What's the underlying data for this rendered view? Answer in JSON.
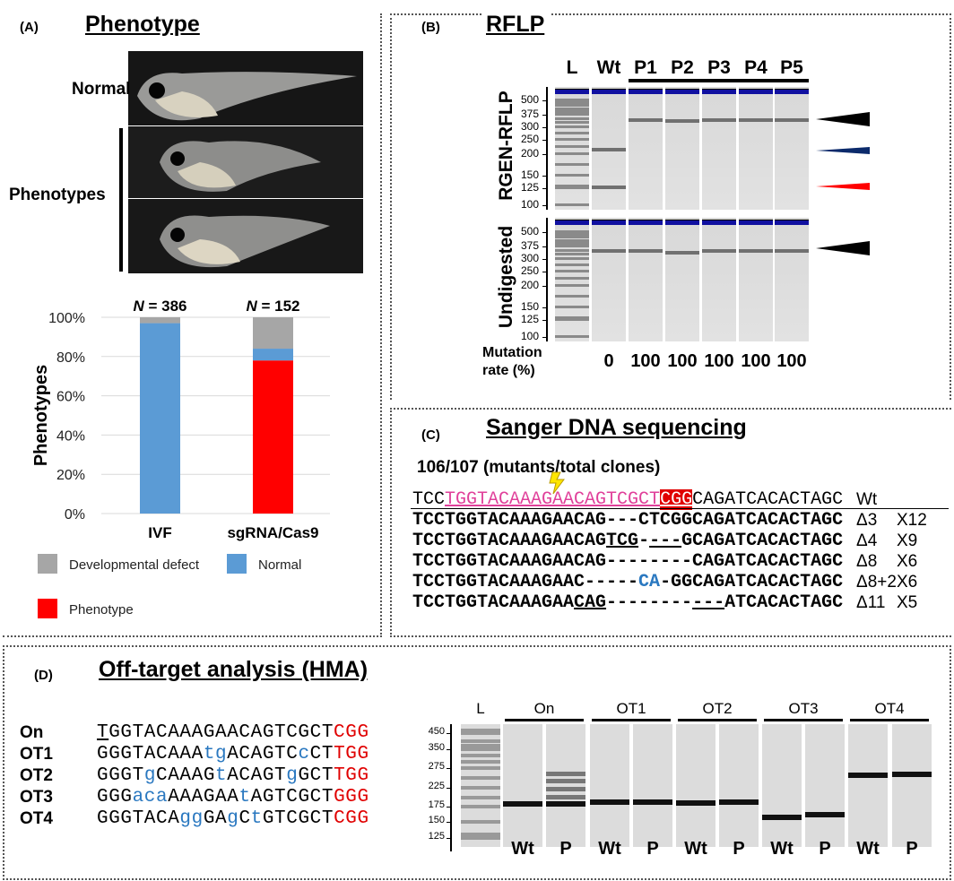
{
  "panel_a": {
    "label": "(A)",
    "title": "Phenotype",
    "photo_labels": {
      "normal": "Normal",
      "phenotypes": "Phenotypes"
    },
    "chart_data": {
      "type": "bar",
      "stacked": true,
      "categories": [
        "IVF",
        "sgRNA/Cas9"
      ],
      "annotations": [
        "N = 386",
        "N = 152"
      ],
      "n_prefix": "N",
      "n_values": [
        "= 386",
        "= 152"
      ],
      "ylabel": "Phenotypes",
      "ylim": [
        0,
        100
      ],
      "yticks": [
        "0%",
        "20%",
        "40%",
        "60%",
        "80%",
        "100%"
      ],
      "grid": true,
      "series": [
        {
          "name": "Phenotype",
          "color": "#ff0000",
          "values": [
            0,
            78
          ]
        },
        {
          "name": "Normal",
          "color": "#5b9bd5",
          "values": [
            97,
            6
          ]
        },
        {
          "name": "Developmental defect",
          "color": "#a6a6a6",
          "values": [
            3,
            16
          ]
        }
      ],
      "legend": [
        "Developmental defect",
        "Normal",
        "Phenotype"
      ],
      "legend_position": "bottom"
    }
  },
  "panel_b": {
    "label": "(B)",
    "title": "RFLP",
    "lanes": [
      "L",
      "Wt",
      "P1",
      "P2",
      "P3",
      "P4",
      "P5"
    ],
    "gel_labels": [
      "RGEN-RFLP",
      "Undigested"
    ],
    "size_ticks": [
      500,
      375,
      300,
      250,
      200,
      150,
      125,
      100
    ],
    "mutation_label_1": "Mutation",
    "mutation_label_2": "rate (%)",
    "mutation_rates": [
      "",
      "0",
      "100",
      "100",
      "100",
      "100",
      "100"
    ],
    "ladder_bands": [
      100,
      125,
      128,
      150,
      175,
      200,
      225,
      250,
      275,
      300,
      325,
      350,
      375,
      400,
      425,
      450,
      475,
      500
    ],
    "rflp_bands": [
      [],
      [
        215,
        127
      ],
      [
        345
      ],
      [
        340
      ],
      [
        342
      ],
      [
        343
      ],
      [
        342
      ]
    ],
    "undigested_bands": [
      [],
      [
        350
      ],
      [
        348
      ],
      [
        340
      ],
      [
        350
      ],
      [
        346
      ],
      [
        348
      ]
    ],
    "arrow_colors": [
      "#000000",
      "#0b2a6b",
      "#ff0000",
      "#000000"
    ]
  },
  "panel_c": {
    "label": "(C)",
    "title": "Sanger DNA sequencing",
    "summary": "106/107 (mutants/total clones)",
    "rows": [
      {
        "segments": [
          {
            "t": "TCC",
            "s": ""
          },
          {
            "t": "TGGTACAAAGAACAGTCGCT",
            "s": "pink-ul"
          },
          {
            "t": "CGG",
            "s": "red-box"
          },
          {
            "t": "CAGATCACACTAGC",
            "s": ""
          }
        ],
        "del": "Wt",
        "count": ""
      },
      {
        "segments": [
          {
            "t": "TCCTGGTACAAAGAACAG---CTCGGCAGATCACACTAGC",
            "s": ""
          }
        ],
        "del": "Δ3",
        "count": "X12"
      },
      {
        "segments": [
          {
            "t": "TCCTGGTACAAAGAACAG",
            "s": ""
          },
          {
            "t": "TCG",
            "s": "ul"
          },
          {
            "t": "-",
            "s": ""
          },
          {
            "t": "---",
            "s": "ul"
          },
          {
            "t": "GCAGATCACACTAGC",
            "s": ""
          }
        ],
        "del": "Δ4",
        "count": "X9"
      },
      {
        "segments": [
          {
            "t": "TCCTGGTACAAAGAACAG--------CAGATCACACTAGC",
            "s": ""
          }
        ],
        "del": "Δ8",
        "count": "X6"
      },
      {
        "segments": [
          {
            "t": "TCCTGGTACAAAGAAC-----",
            "s": ""
          },
          {
            "t": "CA",
            "s": "blue"
          },
          {
            "t": "-GGCAGATCACACTAGC",
            "s": ""
          }
        ],
        "del": "Δ8+2",
        "count": "X6"
      },
      {
        "segments": [
          {
            "t": "TCCTGGTACAAAGAA",
            "s": ""
          },
          {
            "t": "CAG",
            "s": "ul"
          },
          {
            "t": "--------",
            "s": ""
          },
          {
            "t": "---",
            "s": "ul"
          },
          {
            "t": "ATCACACTAGC",
            "s": ""
          }
        ],
        "del": "Δ11",
        "count": "X5"
      }
    ]
  },
  "panel_d": {
    "label": "(D)",
    "title": "Off-target analysis (HMA)",
    "targets": [
      {
        "name": "On",
        "segments": [
          {
            "t": "T",
            "s": "ul"
          },
          {
            "t": "GGTACAAAGAACAGTCGCT",
            "s": ""
          },
          {
            "t": "CGG",
            "s": "red"
          }
        ]
      },
      {
        "name": "OT1",
        "segments": [
          {
            "t": "GGGTACAAA",
            "s": ""
          },
          {
            "t": "tg",
            "s": "blue"
          },
          {
            "t": "ACAGTC",
            "s": ""
          },
          {
            "t": "c",
            "s": "blue"
          },
          {
            "t": "CT",
            "s": ""
          },
          {
            "t": "TGG",
            "s": "red"
          }
        ]
      },
      {
        "name": "OT2",
        "segments": [
          {
            "t": "GGGT",
            "s": ""
          },
          {
            "t": "g",
            "s": "blue"
          },
          {
            "t": "CAAAG",
            "s": ""
          },
          {
            "t": "t",
            "s": "blue"
          },
          {
            "t": "ACAGT",
            "s": ""
          },
          {
            "t": "g",
            "s": "blue"
          },
          {
            "t": "GCT",
            "s": ""
          },
          {
            "t": "TGG",
            "s": "red"
          }
        ]
      },
      {
        "name": "OT3",
        "segments": [
          {
            "t": "GGG",
            "s": ""
          },
          {
            "t": "aca",
            "s": "blue"
          },
          {
            "t": "AAAGAA",
            "s": ""
          },
          {
            "t": "t",
            "s": "blue"
          },
          {
            "t": "AGTCGCT",
            "s": ""
          },
          {
            "t": "GGG",
            "s": "red"
          }
        ]
      },
      {
        "name": "OT4",
        "segments": [
          {
            "t": "GGGTACA",
            "s": ""
          },
          {
            "t": "gg",
            "s": "blue"
          },
          {
            "t": "GA",
            "s": ""
          },
          {
            "t": "g",
            "s": "blue"
          },
          {
            "t": "C",
            "s": ""
          },
          {
            "t": "t",
            "s": "blue"
          },
          {
            "t": "GTCGCT",
            "s": ""
          },
          {
            "t": "CGG",
            "s": "red"
          }
        ]
      }
    ],
    "ladder_label": "L",
    "groups": [
      "On",
      "OT1",
      "OT2",
      "OT3",
      "OT4"
    ],
    "lane_labels": [
      "Wt",
      "P",
      "Wt",
      "P",
      "Wt",
      "P",
      "Wt",
      "P",
      "Wt",
      "P"
    ],
    "size_ticks": [
      450,
      350,
      275,
      225,
      175,
      150,
      125
    ],
    "ladder_bands": [
      125,
      130,
      150,
      175,
      200,
      225,
      250,
      275,
      300,
      325,
      350,
      375,
      400,
      450,
      475
    ],
    "sample_bands": [
      [
        181
      ],
      [
        181,
        200,
        220,
        240,
        260
      ],
      [
        186
      ],
      [
        188
      ],
      [
        185
      ],
      [
        188
      ],
      [
        157
      ],
      [
        162
      ],
      [
        256
      ],
      [
        258
      ]
    ]
  }
}
